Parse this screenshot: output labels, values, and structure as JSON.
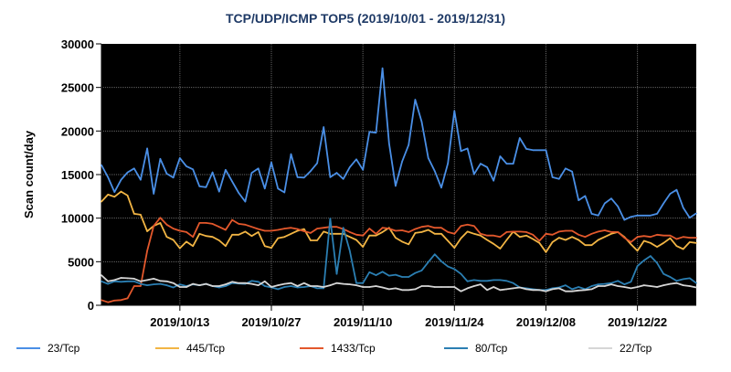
{
  "chart_data": {
    "type": "line",
    "title": "TCP/UDP/ICMP TOP5 (2019/10/01 - 2019/12/31)",
    "xlabel": "",
    "ylabel": "Scan count/day",
    "x_start": "2019-10-01",
    "x_end": "2019-12-31",
    "ylim": [
      0,
      30000
    ],
    "y_ticks": [
      0,
      5000,
      10000,
      15000,
      20000,
      25000,
      30000
    ],
    "x_ticks": [
      {
        "date": "2019-10-13",
        "label": "2019/10/13"
      },
      {
        "date": "2019-10-27",
        "label": "2019/10/27"
      },
      {
        "date": "2019-11-10",
        "label": "2019/11/10"
      },
      {
        "date": "2019-11-24",
        "label": "2019/11/24"
      },
      {
        "date": "2019-12-08",
        "label": "2019/12/08"
      },
      {
        "date": "2019-12-22",
        "label": "2019/12/22"
      }
    ],
    "grid": true,
    "background": "#000000",
    "legend_position": "bottom",
    "series": [
      {
        "name": "23/Tcp",
        "color": "#4a8fe6",
        "values": [
          16100,
          14700,
          13000,
          14400,
          15250,
          15700,
          14400,
          18000,
          12800,
          16800,
          15100,
          14650,
          16900,
          15950,
          15600,
          13650,
          13550,
          15250,
          13050,
          15550,
          14200,
          12900,
          11900,
          15200,
          15700,
          13400,
          16400,
          13400,
          12950,
          17350,
          14700,
          14650,
          15400,
          16300,
          20450,
          14700,
          15200,
          14500,
          15850,
          16750,
          15550,
          19900,
          19800,
          27200,
          18600,
          13700,
          16500,
          18400,
          23600,
          21050,
          16900,
          15400,
          13500,
          16300,
          22300,
          17700,
          18000,
          15050,
          16250,
          15850,
          14300,
          17100,
          16250,
          16250,
          19200,
          17950,
          17800,
          17800,
          17800,
          14700,
          14500,
          15700,
          15350,
          12050,
          12550,
          10500,
          10300,
          11700,
          12250,
          11350,
          9800,
          10150,
          10300,
          10300,
          10300,
          10500,
          11700,
          12800,
          13250,
          11200,
          10050,
          10550
        ]
      },
      {
        "name": "445/Tcp",
        "color": "#f2b544",
        "values": [
          11900,
          12700,
          12450,
          13050,
          12600,
          10500,
          10400,
          8500,
          9100,
          9450,
          7850,
          7500,
          6550,
          7300,
          6800,
          8200,
          7950,
          7850,
          7450,
          6800,
          8100,
          8100,
          8450,
          7950,
          8400,
          6800,
          6600,
          7700,
          7850,
          8200,
          8550,
          8750,
          7450,
          7450,
          8450,
          8200,
          8200,
          8200,
          7850,
          7500,
          6700,
          8000,
          8000,
          8400,
          8900,
          7750,
          7300,
          7000,
          8300,
          8400,
          8650,
          8200,
          8200,
          7400,
          6600,
          7700,
          8450,
          8200,
          8000,
          7500,
          7050,
          6500,
          7500,
          8450,
          7850,
          8000,
          7600,
          7150,
          6100,
          7250,
          7750,
          7500,
          7850,
          7500,
          6900,
          6900,
          7500,
          7850,
          8200,
          8400,
          7850,
          7000,
          6250,
          7400,
          7150,
          6700,
          7150,
          7700,
          6800,
          6450,
          7250,
          7150
        ]
      },
      {
        "name": "1433/Tcp",
        "color": "#e3582c",
        "values": [
          600,
          350,
          550,
          600,
          800,
          2200,
          2200,
          6250,
          9100,
          10050,
          9250,
          8800,
          8550,
          8400,
          7850,
          9450,
          9450,
          9350,
          9000,
          8650,
          9800,
          9350,
          9250,
          9000,
          8750,
          8550,
          8550,
          8650,
          8800,
          8900,
          8750,
          8500,
          8300,
          8800,
          8900,
          9000,
          9000,
          8750,
          8400,
          8100,
          8000,
          8800,
          8200,
          8900,
          8800,
          8550,
          8600,
          8400,
          8750,
          9000,
          9100,
          8900,
          8900,
          8400,
          8200,
          9100,
          9250,
          9100,
          8200,
          8000,
          8000,
          7850,
          8400,
          8450,
          8450,
          8400,
          8100,
          7400,
          8200,
          8100,
          8450,
          8550,
          8550,
          8100,
          7850,
          8200,
          8450,
          8600,
          8400,
          8400,
          7750,
          7250,
          7850,
          7950,
          7850,
          8100,
          8000,
          8000,
          7600,
          7850,
          7750,
          7750
        ]
      },
      {
        "name": "80/Tcp",
        "color": "#2b7fb3",
        "values": [
          2750,
          2450,
          2750,
          2700,
          2750,
          2750,
          2450,
          2300,
          2400,
          2450,
          2300,
          2050,
          2400,
          2200,
          2400,
          2300,
          2450,
          2200,
          2050,
          2200,
          2550,
          2500,
          2450,
          2800,
          2700,
          2200,
          2050,
          1850,
          2100,
          2200,
          2050,
          2100,
          2200,
          1950,
          1950,
          9950,
          3600,
          8900,
          6250,
          2550,
          2550,
          3800,
          3450,
          3850,
          3400,
          3500,
          3250,
          3250,
          3700,
          4000,
          4950,
          5850,
          5050,
          4450,
          4150,
          3600,
          2750,
          2900,
          2800,
          2800,
          2900,
          2900,
          2800,
          2550,
          2050,
          1950,
          1850,
          1750,
          1750,
          1950,
          2050,
          2300,
          1850,
          2100,
          1850,
          2200,
          2400,
          2450,
          2550,
          2800,
          2400,
          2700,
          4500,
          5150,
          5650,
          4850,
          3600,
          3250,
          2800,
          3000,
          3100,
          2550
        ]
      },
      {
        "name": "22/Tcp",
        "color": "#d6d6d6",
        "values": [
          3450,
          2750,
          2900,
          3150,
          3100,
          3050,
          2750,
          2900,
          3050,
          2800,
          2750,
          2550,
          2100,
          2100,
          2450,
          2300,
          2450,
          2200,
          2200,
          2400,
          2700,
          2550,
          2550,
          2450,
          2300,
          2750,
          2100,
          2300,
          2450,
          2550,
          2200,
          2550,
          2200,
          2200,
          2100,
          2300,
          2550,
          2450,
          2400,
          2300,
          2100,
          2100,
          2200,
          2050,
          1850,
          1950,
          1750,
          1750,
          1850,
          2200,
          2200,
          2100,
          2100,
          2100,
          2100,
          1600,
          1950,
          2200,
          2400,
          1750,
          2100,
          1750,
          1850,
          1950,
          2050,
          1850,
          1750,
          1750,
          1600,
          1850,
          1950,
          1600,
          1600,
          1700,
          1750,
          1850,
          2200,
          2200,
          2400,
          2200,
          2100,
          1950,
          2100,
          2300,
          2200,
          2100,
          2300,
          2450,
          2550,
          2300,
          2200,
          2050
        ]
      }
    ]
  }
}
